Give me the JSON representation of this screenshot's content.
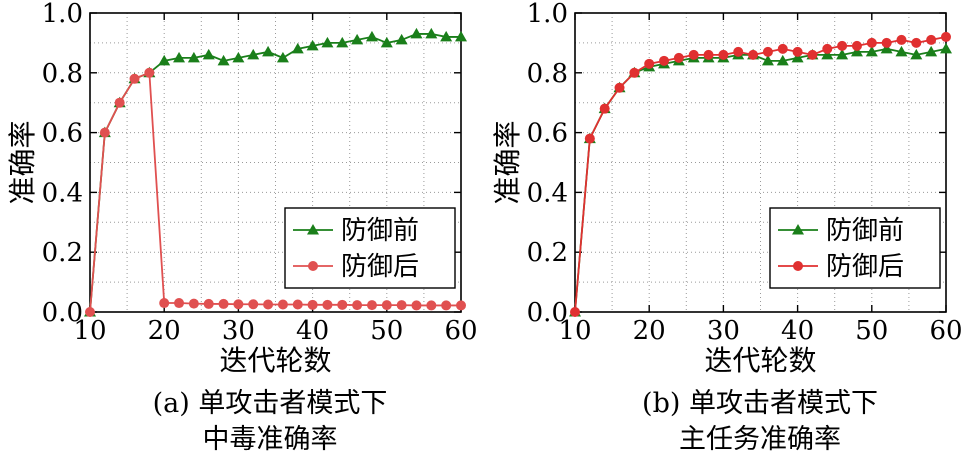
{
  "chart_data": [
    {
      "type": "line",
      "caption_lines": [
        "(a) 单攻击者模式下",
        "中毒准确率"
      ],
      "xlabel": "迭代轮数",
      "ylabel": "准确率",
      "xlim": [
        10,
        60
      ],
      "ylim": [
        0.0,
        1.0
      ],
      "xticks": [
        "10",
        "20",
        "30",
        "40",
        "50",
        "60"
      ],
      "yticks": [
        "0.0",
        "0.2",
        "0.4",
        "0.6",
        "0.8",
        "1.0"
      ],
      "legend_position": "lower-right",
      "x": [
        10,
        12,
        14,
        16,
        18,
        20,
        22,
        24,
        26,
        28,
        30,
        32,
        34,
        36,
        38,
        40,
        42,
        44,
        46,
        48,
        50,
        52,
        54,
        56,
        58,
        60
      ],
      "series": [
        {
          "name": "防御前",
          "color": "#1a7f1a",
          "marker": "triangle",
          "values": [
            0.0,
            0.6,
            0.7,
            0.78,
            0.8,
            0.84,
            0.85,
            0.85,
            0.86,
            0.84,
            0.85,
            0.86,
            0.87,
            0.85,
            0.88,
            0.89,
            0.9,
            0.9,
            0.91,
            0.92,
            0.9,
            0.91,
            0.93,
            0.93,
            0.92,
            0.92
          ]
        },
        {
          "name": "防御后",
          "color": "#e05050",
          "marker": "circle",
          "values": [
            0.0,
            0.6,
            0.7,
            0.78,
            0.8,
            0.03,
            0.03,
            0.028,
            0.027,
            0.027,
            0.026,
            0.026,
            0.025,
            0.025,
            0.025,
            0.024,
            0.024,
            0.024,
            0.023,
            0.023,
            0.023,
            0.023,
            0.022,
            0.022,
            0.022,
            0.022
          ]
        }
      ]
    },
    {
      "type": "line",
      "caption_lines": [
        "(b) 单攻击者模式下",
        "主任务准确率"
      ],
      "xlabel": "迭代轮数",
      "ylabel": "准确率",
      "xlim": [
        10,
        60
      ],
      "ylim": [
        0.0,
        1.0
      ],
      "xticks": [
        "10",
        "20",
        "30",
        "40",
        "50",
        "60"
      ],
      "yticks": [
        "0.0",
        "0.2",
        "0.4",
        "0.6",
        "0.8",
        "1.0"
      ],
      "legend_position": "lower-right",
      "x": [
        10,
        12,
        14,
        16,
        18,
        20,
        22,
        24,
        26,
        28,
        30,
        32,
        34,
        36,
        38,
        40,
        42,
        44,
        46,
        48,
        50,
        52,
        54,
        56,
        58,
        60
      ],
      "series": [
        {
          "name": "防御前",
          "color": "#1a7f1a",
          "marker": "triangle",
          "values": [
            0.0,
            0.58,
            0.68,
            0.75,
            0.8,
            0.82,
            0.83,
            0.84,
            0.85,
            0.85,
            0.85,
            0.86,
            0.86,
            0.84,
            0.84,
            0.85,
            0.86,
            0.86,
            0.86,
            0.87,
            0.87,
            0.88,
            0.87,
            0.86,
            0.87,
            0.88
          ]
        },
        {
          "name": "防御后",
          "color": "#e03030",
          "marker": "circle",
          "values": [
            0.0,
            0.58,
            0.68,
            0.75,
            0.8,
            0.83,
            0.84,
            0.85,
            0.86,
            0.86,
            0.86,
            0.87,
            0.86,
            0.87,
            0.88,
            0.87,
            0.86,
            0.88,
            0.89,
            0.89,
            0.9,
            0.9,
            0.91,
            0.9,
            0.91,
            0.92
          ]
        }
      ]
    }
  ]
}
